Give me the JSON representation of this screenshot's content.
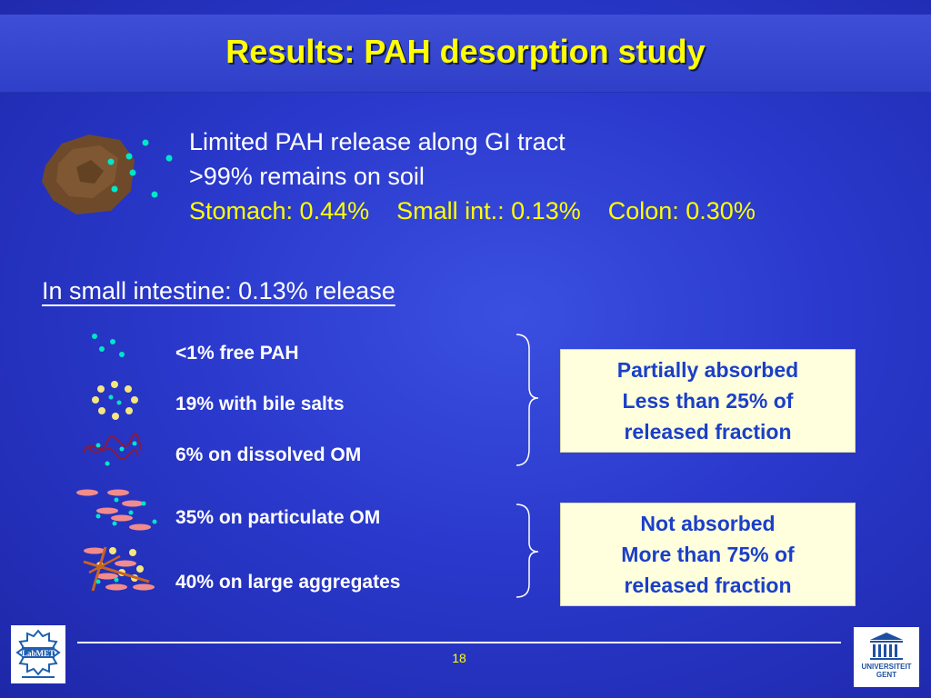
{
  "slide": {
    "title": "Results: PAH desorption study",
    "intro": {
      "line1": "Limited PAH release along GI tract",
      "line2": ">99% remains on soil",
      "stomach": "Stomach: 0.44%",
      "small_int": "Small int.: 0.13%",
      "colon": "Colon: 0.30%"
    },
    "subheading": "In small intestine: 0.13% release",
    "items": [
      "<1% free PAH",
      "19% with bile salts",
      "6% on dissolved OM",
      "35% on particulate OM",
      "40% on large aggregates"
    ],
    "box_absorbed": {
      "line1": "Partially absorbed",
      "line2": "Less than 25% of",
      "line3": "released fraction"
    },
    "box_not_absorbed": {
      "line1": "Not absorbed",
      "line2": "More than 75% of",
      "line3": "released fraction"
    },
    "page_number": "18"
  },
  "logos": {
    "left": "LabMET",
    "right_line1": "UNIVERSITEIT",
    "right_line2": "GENT"
  },
  "colors": {
    "title": "#ffff00",
    "pah_dot": "#00e6c8",
    "bile_salt": "#f5e680",
    "om_strand": "#8b1a3a",
    "particle": "#f28c8c",
    "box_text": "#1a3fc8",
    "box_bg": "#ffffdd"
  }
}
